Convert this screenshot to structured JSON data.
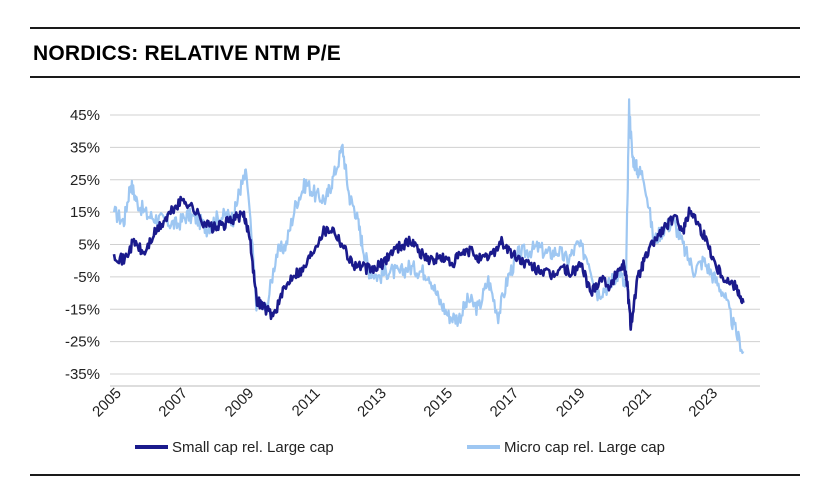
{
  "chart_data": {
    "type": "line",
    "title": "NORDICS: RELATIVE NTM P/E",
    "xlabel": "",
    "ylabel": "",
    "xlim": [
      2005,
      2024.2
    ],
    "ylim": [
      -35,
      50
    ],
    "y_ticks": [
      45,
      35,
      25,
      15,
      5,
      -5,
      -15,
      -25,
      -35
    ],
    "y_tick_labels": [
      "45%",
      "35%",
      "25%",
      "15%",
      "5%",
      "-5%",
      "-15%",
      "-25%",
      "-35%"
    ],
    "x_ticks": [
      2005,
      2007,
      2009,
      2011,
      2013,
      2015,
      2017,
      2019,
      2021,
      2023
    ],
    "x_tick_labels": [
      "2005",
      "2007",
      "2009",
      "2011",
      "2013",
      "2015",
      "2017",
      "2019",
      "2021",
      "2023"
    ],
    "grid": "horizontal",
    "legend_position": "bottom",
    "series": [
      {
        "name": "Small cap rel. Large cap",
        "color": "#1a1a8c",
        "x": [
          2005.0,
          2005.3,
          2005.6,
          2005.9,
          2006.2,
          2006.5,
          2006.8,
          2007.1,
          2007.4,
          2007.7,
          2008.0,
          2008.3,
          2008.6,
          2008.9,
          2009.1,
          2009.3,
          2009.5,
          2009.8,
          2010.1,
          2010.4,
          2010.7,
          2011.0,
          2011.3,
          2011.6,
          2011.9,
          2012.2,
          2012.5,
          2012.8,
          2013.1,
          2013.4,
          2013.7,
          2014.0,
          2014.3,
          2014.6,
          2014.9,
          2015.2,
          2015.5,
          2015.8,
          2016.1,
          2016.4,
          2016.7,
          2017.0,
          2017.3,
          2017.6,
          2017.9,
          2018.2,
          2018.5,
          2018.8,
          2019.1,
          2019.4,
          2019.7,
          2020.0,
          2020.2,
          2020.4,
          2020.5,
          2020.6,
          2020.8,
          2021.0,
          2021.3,
          2021.6,
          2021.9,
          2022.2,
          2022.4,
          2022.6,
          2022.9,
          2023.2,
          2023.5,
          2023.8,
          2024.0
        ],
        "values": [
          2,
          0,
          6,
          2,
          8,
          12,
          16,
          19,
          16,
          12,
          10,
          11,
          13,
          14,
          8,
          -12,
          -14,
          -17,
          -10,
          -4,
          -3,
          3,
          9,
          10,
          5,
          -1,
          -2,
          -3,
          -1,
          3,
          5,
          6,
          2,
          0,
          1,
          -1,
          2,
          3,
          0,
          2,
          6,
          2,
          0,
          -2,
          -3,
          -5,
          -2,
          -4,
          -1,
          -10,
          -5,
          -8,
          -3,
          -1,
          -8,
          -20,
          -6,
          0,
          6,
          10,
          13,
          10,
          16,
          12,
          6,
          -2,
          -6,
          -8,
          -13
        ]
      },
      {
        "name": "Micro cap rel. Large cap",
        "color": "#9ec7f2",
        "x": [
          2005.0,
          2005.3,
          2005.5,
          2005.7,
          2006.0,
          2006.3,
          2006.6,
          2006.9,
          2007.2,
          2007.5,
          2007.8,
          2008.1,
          2008.4,
          2008.6,
          2008.8,
          2009.0,
          2009.3,
          2009.6,
          2009.9,
          2010.2,
          2010.5,
          2010.8,
          2011.1,
          2011.4,
          2011.6,
          2011.9,
          2012.1,
          2012.3,
          2012.5,
          2012.7,
          2013.0,
          2013.3,
          2013.6,
          2013.9,
          2014.2,
          2014.5,
          2014.8,
          2015.1,
          2015.4,
          2015.7,
          2016.0,
          2016.3,
          2016.6,
          2016.9,
          2017.2,
          2017.5,
          2017.8,
          2018.1,
          2018.4,
          2018.7,
          2019.0,
          2019.3,
          2019.6,
          2019.9,
          2020.1,
          2020.3,
          2020.45,
          2020.55,
          2020.65,
          2020.8,
          2021.0,
          2021.3,
          2021.6,
          2021.9,
          2022.2,
          2022.5,
          2022.8,
          2023.1,
          2023.4,
          2023.7,
          2024.0
        ],
        "values": [
          15,
          12,
          24,
          18,
          14,
          13,
          12,
          11,
          14,
          13,
          10,
          13,
          14,
          13,
          22,
          27,
          -13,
          -15,
          2,
          5,
          18,
          24,
          20,
          19,
          25,
          35,
          20,
          15,
          5,
          -3,
          -5,
          -3,
          -4,
          -2,
          -3,
          -4,
          -12,
          -17,
          -18,
          -12,
          -15,
          -6,
          -17,
          -5,
          2,
          3,
          4,
          2,
          3,
          0,
          5,
          1,
          -10,
          -8,
          -5,
          -4,
          -10,
          48,
          32,
          28,
          26,
          6,
          10,
          12,
          4,
          -3,
          0,
          -5,
          -10,
          -20,
          -28
        ]
      }
    ]
  }
}
